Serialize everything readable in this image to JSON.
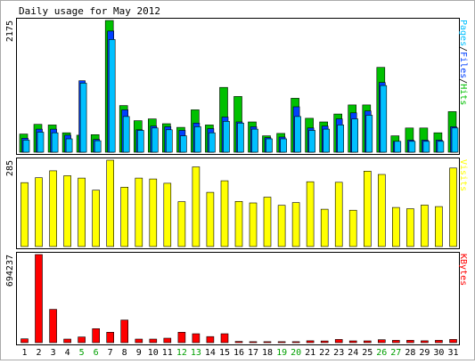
{
  "title": "Daily usage for May 2012",
  "colors": {
    "background": "#ffffff",
    "hits": "#00c000",
    "files": "#0040ff",
    "pages": "#00c0ff",
    "visits": "#ffff00",
    "kbytes": "#ff0000",
    "weekday_label": "#000000",
    "weekend_label": "#00a000"
  },
  "chart_data": [
    {
      "type": "bar",
      "title": "Daily usage for May 2012",
      "categories": [
        "1",
        "2",
        "3",
        "4",
        "5",
        "6",
        "7",
        "8",
        "9",
        "10",
        "11",
        "12",
        "13",
        "14",
        "15",
        "16",
        "17",
        "18",
        "19",
        "20",
        "21",
        "22",
        "23",
        "24",
        "25",
        "26",
        "27",
        "28",
        "29",
        "30",
        "31"
      ],
      "weekend_days": [
        "5",
        "6",
        "12",
        "13",
        "19",
        "20",
        "26",
        "27"
      ],
      "ylabel_parts": [
        "Pages",
        "Files",
        "Hits"
      ],
      "max_label": "2175",
      "ylim": [
        0,
        2175
      ],
      "series": [
        {
          "name": "Hits",
          "values": [
            300,
            460,
            450,
            320,
            280,
            290,
            2175,
            770,
            520,
            550,
            470,
            410,
            700,
            450,
            1070,
            920,
            500,
            270,
            310,
            890,
            560,
            500,
            630,
            780,
            780,
            1400,
            270,
            400,
            400,
            320,
            670
          ]
        },
        {
          "name": "Files",
          "values": [
            230,
            380,
            380,
            280,
            1180,
            210,
            2000,
            700,
            370,
            430,
            420,
            360,
            480,
            390,
            580,
            500,
            420,
            240,
            250,
            750,
            400,
            430,
            550,
            650,
            680,
            1150,
            180,
            200,
            200,
            200,
            420
          ]
        },
        {
          "name": "Pages",
          "values": [
            200,
            330,
            320,
            220,
            1140,
            190,
            1860,
            590,
            360,
            400,
            370,
            270,
            420,
            320,
            510,
            480,
            380,
            220,
            220,
            590,
            360,
            380,
            450,
            550,
            610,
            1100,
            180,
            180,
            180,
            180,
            400
          ]
        }
      ]
    },
    {
      "type": "bar",
      "categories": [
        "1",
        "2",
        "3",
        "4",
        "5",
        "6",
        "7",
        "8",
        "9",
        "10",
        "11",
        "12",
        "13",
        "14",
        "15",
        "16",
        "17",
        "18",
        "19",
        "20",
        "21",
        "22",
        "23",
        "24",
        "25",
        "26",
        "27",
        "28",
        "29",
        "30",
        "31"
      ],
      "ylabel": "Visits",
      "max_label": "285",
      "ylim": [
        0,
        285
      ],
      "series": [
        {
          "name": "Visits",
          "values": [
            211,
            227,
            250,
            234,
            226,
            186,
            285,
            196,
            226,
            223,
            209,
            148,
            263,
            179,
            217,
            149,
            144,
            163,
            136,
            145,
            214,
            123,
            212,
            120,
            249,
            238,
            129,
            125,
            137,
            132,
            259
          ]
        }
      ]
    },
    {
      "type": "bar",
      "categories": [
        "1",
        "2",
        "3",
        "4",
        "5",
        "6",
        "7",
        "8",
        "9",
        "10",
        "11",
        "12",
        "13",
        "14",
        "15",
        "16",
        "17",
        "18",
        "19",
        "20",
        "21",
        "22",
        "23",
        "24",
        "25",
        "26",
        "27",
        "28",
        "29",
        "30",
        "31"
      ],
      "ylabel": "KBytes",
      "max_label": "694237",
      "ylim": [
        0,
        694237
      ],
      "series": [
        {
          "name": "KBytes",
          "values": [
            30000,
            694237,
            262000,
            28000,
            45000,
            110000,
            82000,
            178000,
            28000,
            28000,
            35000,
            82000,
            70000,
            48000,
            70000,
            10000,
            8000,
            8000,
            8000,
            8000,
            15000,
            13000,
            25000,
            14000,
            14000,
            23000,
            18000,
            18000,
            15000,
            18000,
            25000
          ]
        }
      ]
    }
  ]
}
